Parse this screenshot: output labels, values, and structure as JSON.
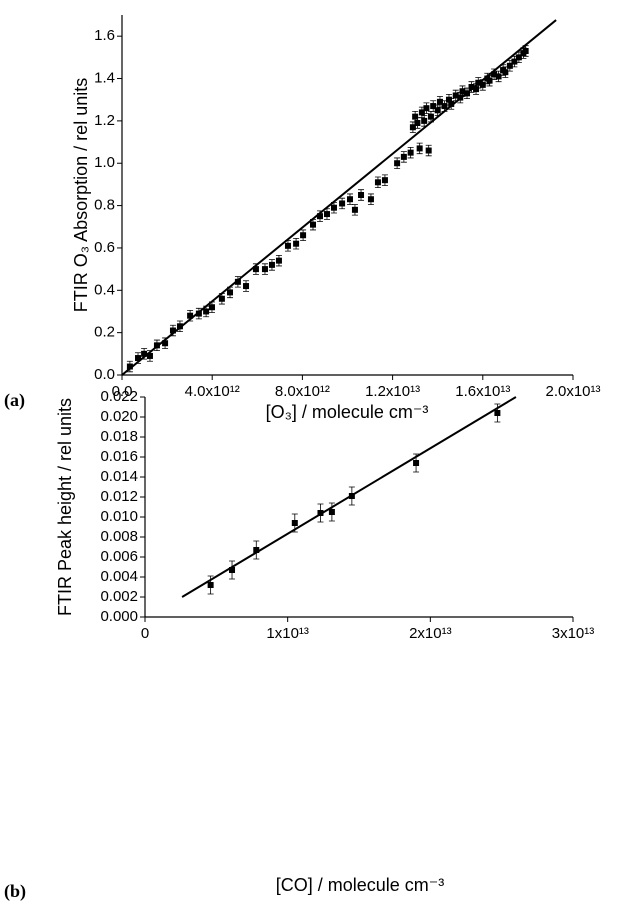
{
  "chart_data": [
    {
      "type": "scatter",
      "panel_label": "(a)",
      "x_label": "[O₃] / molecule cm⁻³",
      "y_label": "FTIR O₃ Absorption / rel units",
      "color": "#000000",
      "xlim": [
        0,
        20000000000000.0
      ],
      "ylim": [
        0,
        1.7
      ],
      "xticks": [
        {
          "value": 0,
          "label": "0.0"
        },
        {
          "value": 4000000000000.0,
          "label": "4.0x10¹²"
        },
        {
          "value": 8000000000000.0,
          "label": "8.0x10¹²"
        },
        {
          "value": 12000000000000.0,
          "label": "1.2x10¹³"
        },
        {
          "value": 16000000000000.0,
          "label": "1.6x10¹³"
        },
        {
          "value": 20000000000000.0,
          "label": "2.0x10¹³"
        }
      ],
      "yticks": [
        {
          "value": 0,
          "label": "0.0"
        },
        0.2,
        0.4,
        0.6,
        0.8,
        {
          "value": 1,
          "label": "1.0"
        },
        1.2,
        1.4,
        1.6
      ],
      "yerr": 0.025,
      "points": {
        "x": [
          350000000000.0,
          710000000000.0,
          980000000000.0,
          1240000000000.0,
          1550000000000.0,
          1910000000000.0,
          2260000000000.0,
          2570000000000.0,
          3020000000000.0,
          3410000000000.0,
          3730000000000.0,
          3990000000000.0,
          4430000000000.0,
          4790000000000.0,
          5140000000000.0,
          5500000000000.0,
          5940000000000.0,
          6340000000000.0,
          6650000000000.0,
          6960000000000.0,
          7360000000000.0,
          7720000000000.0,
          8030000000000.0,
          8470000000000.0,
          8780000000000.0,
          9090000000000.0,
          9400000000000.0,
          9760000000000.0,
          10110000000000.0,
          10330000000000.0,
          10600000000000.0,
          11040000000000.0,
          11350000000000.0,
          11660000000000.0,
          12200000000000.0,
          12500000000000.0,
          12800000000000.0,
          13200000000000.0,
          13600000000000.0,
          12900000000000.0,
          13000000000000.0,
          13100000000000.0,
          13300000000000.0,
          13400000000000.0,
          13500000000000.0,
          13700000000000.0,
          13800000000000.0,
          14000000000000.0,
          14100000000000.0,
          14300000000000.0,
          14500000000000.0,
          14600000000000.0,
          14800000000000.0,
          15000000000000.0,
          15100000000000.0,
          15300000000000.0,
          15500000000000.0,
          15700000000000.0,
          15800000000000.0,
          16000000000000.0,
          16200000000000.0,
          16300000000000.0,
          16500000000000.0,
          16700000000000.0,
          16900000000000.0,
          17000000000000.0,
          17200000000000.0,
          17400000000000.0,
          17600000000000.0,
          17800000000000.0,
          17900000000000.0
        ],
        "values": [
          0.04,
          0.08,
          0.1,
          0.09,
          0.14,
          0.15,
          0.21,
          0.23,
          0.28,
          0.29,
          0.3,
          0.32,
          0.36,
          0.39,
          0.44,
          0.42,
          0.5,
          0.5,
          0.52,
          0.54,
          0.61,
          0.62,
          0.66,
          0.71,
          0.75,
          0.76,
          0.79,
          0.81,
          0.83,
          0.78,
          0.85,
          0.83,
          0.91,
          0.92,
          1.0,
          1.03,
          1.05,
          1.07,
          1.06,
          1.17,
          1.22,
          1.19,
          1.24,
          1.2,
          1.26,
          1.22,
          1.27,
          1.25,
          1.29,
          1.27,
          1.3,
          1.28,
          1.32,
          1.31,
          1.34,
          1.33,
          1.36,
          1.35,
          1.38,
          1.37,
          1.4,
          1.39,
          1.42,
          1.41,
          1.44,
          1.43,
          1.46,
          1.48,
          1.5,
          1.52,
          1.53
        ]
      },
      "fit": {
        "x": [
          0,
          19250000000000.0
        ],
        "values": [
          0,
          1.676
        ]
      }
    },
    {
      "type": "scatter",
      "panel_label": "(b)",
      "x_label": "[CO]  / molecule cm⁻³",
      "y_label": "FTIR Peak height / rel units",
      "color": "#000000",
      "xlim": [
        0,
        30000000000000.0
      ],
      "ylim": [
        0,
        0.022
      ],
      "xticks": [
        0,
        {
          "value": 10000000000000.0,
          "label": "1x10¹³"
        },
        {
          "value": 20000000000000.0,
          "label": "2x10¹³"
        },
        {
          "value": 30000000000000.0,
          "label": "3x10¹³"
        }
      ],
      "yticks": [
        {
          "value": 0,
          "label": "0.000"
        },
        0.002,
        0.004,
        0.006,
        0.008,
        {
          "value": 0.01,
          "label": "0.010"
        },
        0.012,
        0.014,
        0.016,
        0.018,
        {
          "value": 0.02,
          "label": "0.020"
        },
        0.022
      ],
      "yerr": 0.0009,
      "points": {
        "x": [
          4600000000000.0,
          6100000000000.0,
          7800000000000.0,
          10500000000000.0,
          12300000000000.0,
          13100000000000.0,
          14500000000000.0,
          19000000000000.0,
          24700000000000.0
        ],
        "values": [
          0.0032,
          0.0047,
          0.0067,
          0.0094,
          0.0104,
          0.0105,
          0.0121,
          0.0154,
          0.0204
        ]
      },
      "fit": {
        "x": [
          2600000000000.0,
          26000000000000.0
        ],
        "values": [
          0.002,
          0.022
        ]
      }
    }
  ]
}
